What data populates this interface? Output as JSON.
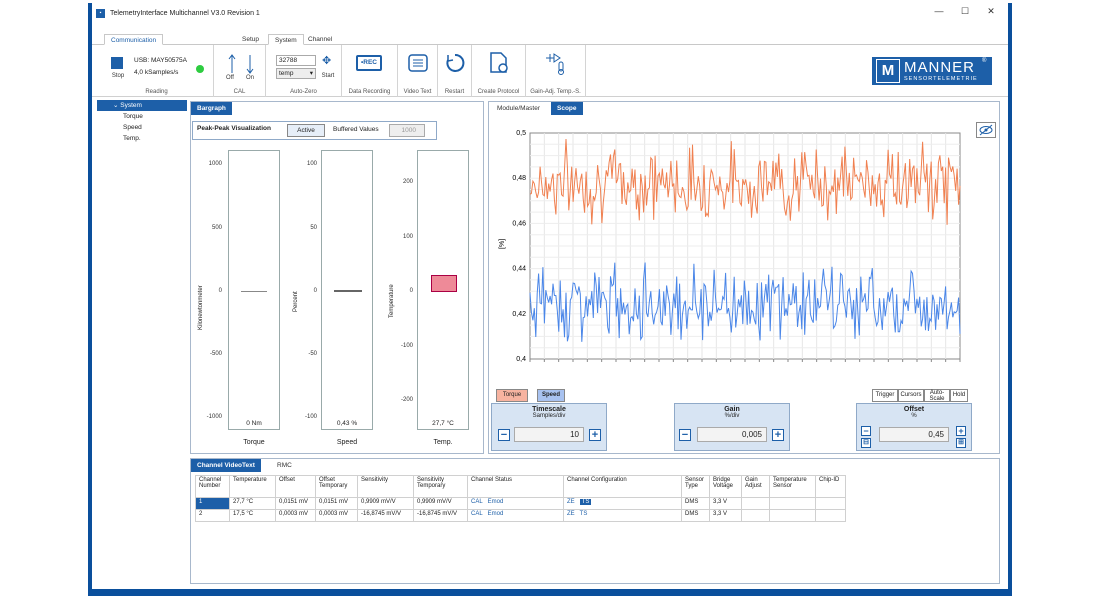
{
  "window": {
    "title": "TelemetryInterface Multichannel V3.0 Revision 1",
    "minimize": "—",
    "maximize": "☐",
    "close": "✕"
  },
  "ribbon_tabs": {
    "communication": "Communication",
    "setup": "Setup",
    "system": "System",
    "channel": "Channel"
  },
  "reading": {
    "stop": "Stop",
    "usb": "USB: MAY50575A",
    "rate": "4,0 kSamples/s",
    "label": "Reading",
    "status_color": "#2ecc40"
  },
  "cal": {
    "off": "Off",
    "on": "On",
    "label": "CAL"
  },
  "autozero": {
    "value": "32788",
    "mode": "temp",
    "start": "Start",
    "label": "Auto-Zero"
  },
  "buttons": {
    "data_recording": "Data Recording",
    "rec": "•REC",
    "video_text": "Video Text",
    "restart": "Restart",
    "create_protocol": "Create Protocol",
    "gain_adj": "Gain-Adj. Temp.-S."
  },
  "logo": {
    "name": "MANNER",
    "sub": "SENSORTELEMETRIE",
    "reg": "®"
  },
  "tree": {
    "root": "System",
    "items": [
      "Torque",
      "Speed",
      "Temp."
    ]
  },
  "bargraph": {
    "tab": "Bargraph",
    "viz_label": "Peak-Peak Visualization",
    "active": "Active",
    "buffered": "Buffered Values",
    "buffered_value": "1000",
    "bars": [
      {
        "ylabel": "Kilonewtonmeter",
        "ticks": [
          "1000",
          "500",
          "0",
          "-500",
          "-1000"
        ],
        "value": "0 Nm",
        "name": "Torque",
        "fill_fraction": 0.0
      },
      {
        "ylabel": "Percent",
        "ticks": [
          "100",
          "50",
          "0",
          "-50",
          "-100"
        ],
        "value": "0,43 %",
        "name": "Speed",
        "fill_fraction": 0.0043
      },
      {
        "ylabel": "Temperature",
        "ticks": [
          "200",
          "100",
          "0",
          "-100",
          "-200"
        ],
        "value": "27,7 °C",
        "name": "Temp.",
        "fill_fraction": 0.14
      }
    ]
  },
  "scope": {
    "tabs": {
      "module": "Module/Master",
      "scope": "Scope"
    },
    "ylabel": "[%]",
    "yticks": [
      "0,5",
      "0,48",
      "0,46",
      "0,44",
      "0,42",
      "0,4"
    ],
    "legend": {
      "torque": "Torque",
      "speed": "Speed"
    },
    "controls": {
      "trigger": "Trigger",
      "cursors": "Cursors",
      "autoscale": "Auto-Scale",
      "hold": "Hold"
    },
    "timescale": {
      "title": "Timescale",
      "unit": "Samples/div",
      "value": "10"
    },
    "gain": {
      "title": "Gain",
      "unit": "%/div",
      "value": "0,005"
    },
    "offset": {
      "title": "Offset",
      "unit": "%",
      "value": "0,45"
    },
    "colors": {
      "torque": "#f08050",
      "speed": "#4a86e8"
    }
  },
  "chart_data": {
    "type": "line",
    "ylabel": "[%]",
    "ylim": [
      0.4,
      0.5
    ],
    "series": [
      {
        "name": "Torque",
        "mean": 0.478,
        "range": [
          0.458,
          0.5
        ]
      },
      {
        "name": "Speed",
        "mean": 0.425,
        "range": [
          0.404,
          0.446
        ]
      }
    ]
  },
  "table": {
    "tabs": {
      "videotext": "Channel VideoText",
      "rmc": "RMC"
    },
    "headers": [
      "Channel Number",
      "Temperature",
      "Offset",
      "Offset Temporary",
      "Sensitivity",
      "Sensitivity Temporary",
      "Channel Status",
      "Channel Configuration",
      "Sensor Type",
      "Bridge Voltage",
      "Gain Adjust",
      "Temperature Sensor",
      "Chip-ID"
    ],
    "rows": [
      {
        "num": "1",
        "temp": "27,7 °C",
        "offset": "0,0151 mV",
        "offset_tmp": "0,0151 mV",
        "sens": "0,9909 mV/V",
        "sens_tmp": "0,9909 mV/V",
        "status": [
          "CAL",
          "Emod"
        ],
        "config": [
          "ZE",
          "TS"
        ],
        "sensor": "DMS",
        "bridge": "3,3 V"
      },
      {
        "num": "2",
        "temp": "17,5 °C",
        "offset": "0,0003 mV",
        "offset_tmp": "0,0003 mV",
        "sens": "-16,8745 mV/V",
        "sens_tmp": "-16,8745 mV/V",
        "status": [
          "CAL",
          "Emod"
        ],
        "config": [
          "ZE",
          "TS"
        ],
        "sensor": "DMS",
        "bridge": "3,3 V"
      }
    ]
  }
}
